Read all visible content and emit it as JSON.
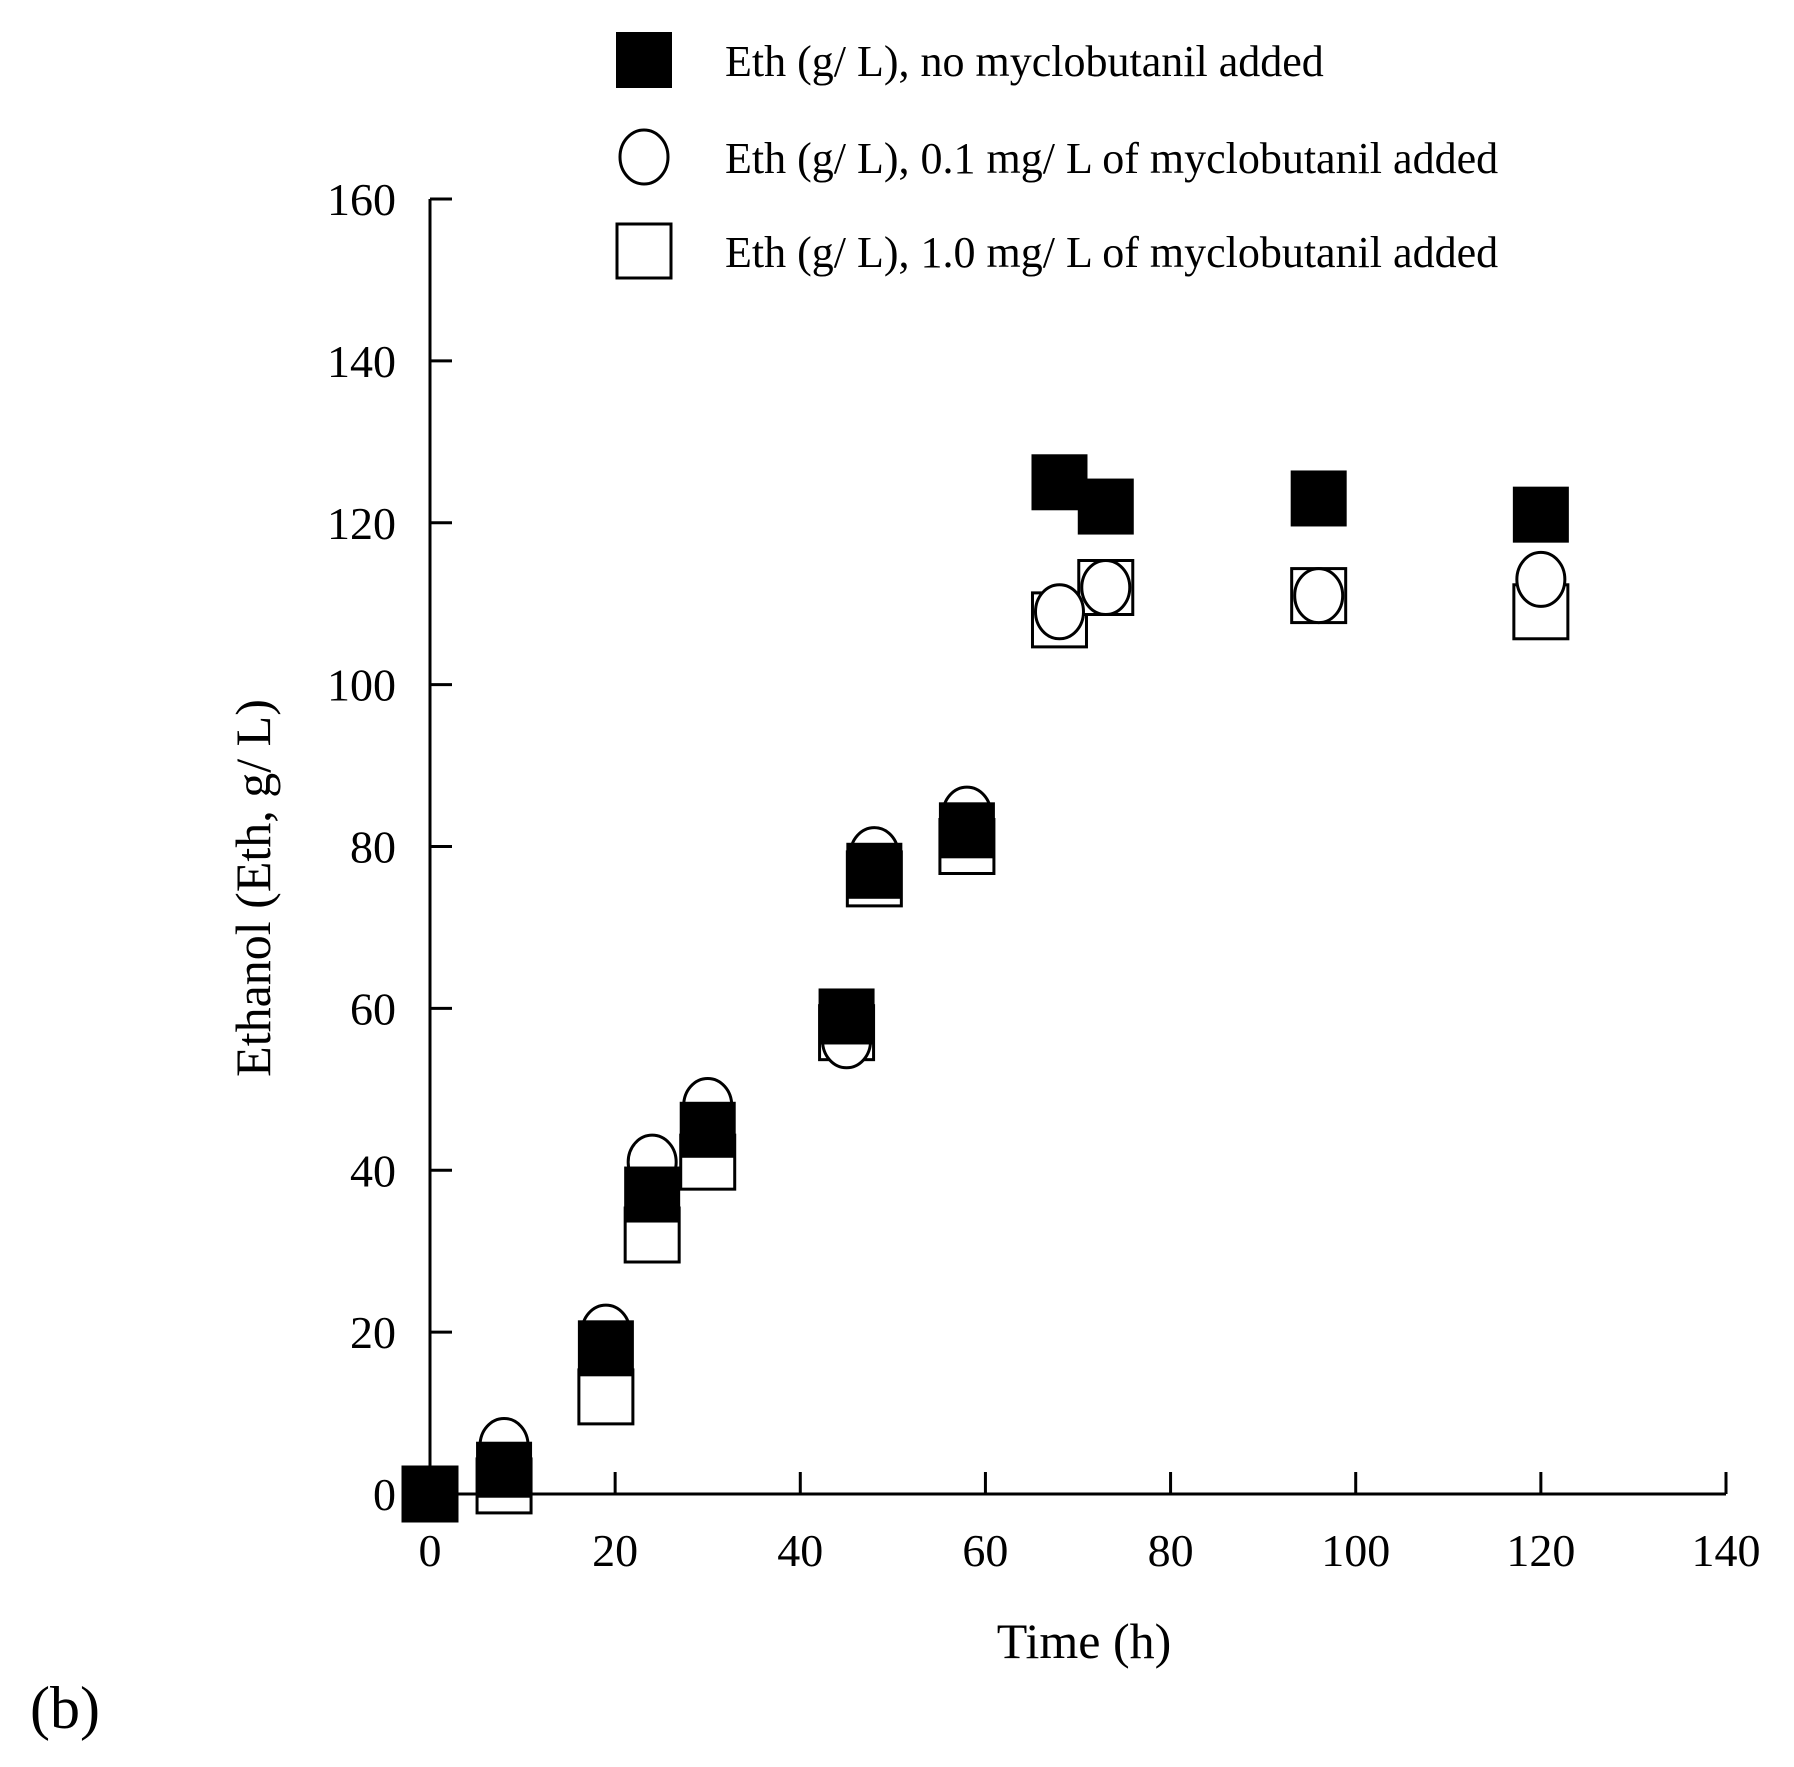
{
  "chart_data": {
    "type": "scatter",
    "panel_label": "(b)",
    "xlabel": "Time (h)",
    "ylabel": "Ethanol (Eth, g/ L)",
    "xlim": [
      0,
      140
    ],
    "ylim": [
      0,
      160
    ],
    "xticks": [
      0,
      20,
      40,
      60,
      80,
      100,
      120,
      140
    ],
    "yticks": [
      0,
      20,
      40,
      60,
      80,
      100,
      120,
      140,
      160
    ],
    "grid": false,
    "legend_position": "top",
    "series": [
      {
        "name": "Eth (g/ L), no myclobutanil added",
        "marker": "filled-square",
        "color": "#000000",
        "points": [
          {
            "x": 0,
            "y": 0
          },
          {
            "x": 8,
            "y": 3
          },
          {
            "x": 19,
            "y": 18
          },
          {
            "x": 24,
            "y": 37
          },
          {
            "x": 30,
            "y": 45
          },
          {
            "x": 45,
            "y": 59
          },
          {
            "x": 48,
            "y": 77
          },
          {
            "x": 58,
            "y": 82
          },
          {
            "x": 68,
            "y": 125
          },
          {
            "x": 73,
            "y": 122
          },
          {
            "x": 96,
            "y": 123
          },
          {
            "x": 120,
            "y": 121
          }
        ]
      },
      {
        "name": "Eth (g/ L), 0.1 mg/ L of myclobutanil added",
        "marker": "open-circle",
        "color": "#000000",
        "points": [
          {
            "x": 0,
            "y": 0
          },
          {
            "x": 8,
            "y": 6
          },
          {
            "x": 19,
            "y": 20
          },
          {
            "x": 24,
            "y": 41
          },
          {
            "x": 30,
            "y": 48
          },
          {
            "x": 45,
            "y": 56
          },
          {
            "x": 48,
            "y": 79
          },
          {
            "x": 58,
            "y": 84
          },
          {
            "x": 68,
            "y": 109
          },
          {
            "x": 73,
            "y": 112
          },
          {
            "x": 96,
            "y": 111
          },
          {
            "x": 120,
            "y": 113
          }
        ]
      },
      {
        "name": "Eth (g/ L), 1.0 mg/ L of myclobutanil added",
        "marker": "open-square",
        "color": "#000000",
        "points": [
          {
            "x": 0,
            "y": 0
          },
          {
            "x": 8,
            "y": 1
          },
          {
            "x": 19,
            "y": 12
          },
          {
            "x": 24,
            "y": 32
          },
          {
            "x": 30,
            "y": 41
          },
          {
            "x": 45,
            "y": 57
          },
          {
            "x": 48,
            "y": 76
          },
          {
            "x": 58,
            "y": 80
          },
          {
            "x": 68,
            "y": 108
          },
          {
            "x": 73,
            "y": 112
          },
          {
            "x": 96,
            "y": 111
          },
          {
            "x": 120,
            "y": 109
          }
        ]
      }
    ]
  }
}
